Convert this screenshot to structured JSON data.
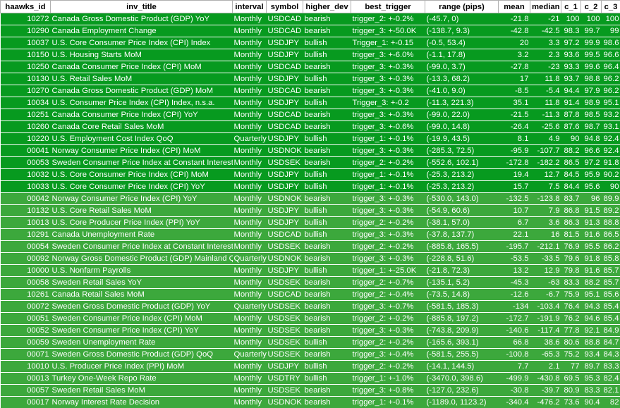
{
  "columns": [
    "haawks_id",
    "inv_title",
    "interval",
    "symbol",
    "higher_dev",
    "best_trigger",
    "range (pips)",
    "mean",
    "median",
    "c_1",
    "c_2",
    "c_3"
  ],
  "colors": {
    "dark_group": "#079a1f",
    "light_group": "#3ca83c",
    "text": "#ffffff"
  },
  "rows": [
    [
      "10272",
      "Canada Gross Domestic Product (GDP) YoY",
      "Monthly",
      "USDCAD",
      "bearish",
      "trigger_2: +-0.2%",
      "(-45.7, 0)",
      "-21.8",
      "-21",
      "100",
      "100",
      "100",
      "dark"
    ],
    [
      "10290",
      "Canada Employment Change",
      "Monthly",
      "USDCAD",
      "bearish",
      "trigger_3: +-50.0K",
      "(-138.7, 9.3)",
      "-42.8",
      "-42.5",
      "98.3",
      "99.7",
      "99",
      "dark"
    ],
    [
      "10037",
      "U.S. Core Consumer Price Index (CPI) Index",
      "Monthly",
      "USDJPY",
      "bullish",
      "Trigger_1: +-0.15",
      "(-0.5, 53.4)",
      "20",
      "3.3",
      "97.2",
      "99.9",
      "98.6",
      "dark"
    ],
    [
      "10150",
      "U.S. Housing Starts MoM",
      "Monthly",
      "USDJPY",
      "bullish",
      "trigger_3: +-6.0%",
      "(-1.1, 17.8)",
      "3.2",
      "2.3",
      "93.6",
      "99.5",
      "96.6",
      "dark"
    ],
    [
      "10250",
      "Canada Consumer Price Index (CPI) MoM",
      "Monthly",
      "USDCAD",
      "bearish",
      "trigger_3: +-0.3%",
      "(-99.0, 3.7)",
      "-27.8",
      "-23",
      "93.3",
      "99.6",
      "96.4",
      "dark"
    ],
    [
      "10130",
      "U.S. Retail Sales MoM",
      "Monthly",
      "USDJPY",
      "bullish",
      "trigger_3: +-0.3%",
      "(-13.3, 68.2)",
      "17",
      "11.8",
      "93.7",
      "98.8",
      "96.2",
      "dark"
    ],
    [
      "10270",
      "Canada Gross Domestic Product (GDP) MoM",
      "Monthly",
      "USDCAD",
      "bearish",
      "trigger_3: +-0.3%",
      "(-41.0, 9.0)",
      "-8.5",
      "-5.4",
      "94.4",
      "97.9",
      "96.2",
      "dark"
    ],
    [
      "10034",
      "U.S. Consumer Price Index (CPI) Index, n.s.a.",
      "Monthly",
      "USDJPY",
      "bullish",
      "Trigger_3: +-0.2",
      "(-11.3, 221.3)",
      "35.1",
      "11.8",
      "91.4",
      "98.9",
      "95.1",
      "dark"
    ],
    [
      "10251",
      "Canada Consumer Price Index (CPI) YoY",
      "Monthly",
      "USDCAD",
      "bearish",
      "trigger_3: +-0.3%",
      "(-99.0, 22.0)",
      "-21.5",
      "-11.3",
      "87.8",
      "98.5",
      "93.2",
      "dark"
    ],
    [
      "10260",
      "Canada Core Retail Sales MoM",
      "Monthly",
      "USDCAD",
      "bearish",
      "trigger_3: +-0.6%",
      "(-99.0, 14.8)",
      "-26.4",
      "-25.6",
      "87.6",
      "98.7",
      "93.1",
      "dark"
    ],
    [
      "10220",
      "U.S. Employment Cost Index QoQ",
      "Quarterly",
      "USDJPY",
      "bullish",
      "trigger_1: +-0.1%",
      "(-19.9, 43.5)",
      "8.1",
      "4.9",
      "90",
      "94.8",
      "92.4",
      "dark"
    ],
    [
      "00041",
      "Norway Consumer Price Index (CPI) MoM",
      "Monthly",
      "USDNOK",
      "bearish",
      "trigger_3: +-0.3%",
      "(-285.3, 72.5)",
      "-95.9",
      "-107.7",
      "88.2",
      "96.6",
      "92.4",
      "dark"
    ],
    [
      "00053",
      "Sweden Consumer Price Index at Constant Interest",
      "Monthly",
      "USDSEK",
      "bearish",
      "trigger_2: +-0.2%",
      "(-552.6, 102.1)",
      "-172.8",
      "-182.2",
      "86.5",
      "97.2",
      "91.8",
      "dark"
    ],
    [
      "10032",
      "U.S. Core Consumer Price Index (CPI) MoM",
      "Monthly",
      "USDJPY",
      "bullish",
      "trigger_1: +-0.1%",
      "(-25.3, 213.2)",
      "19.4",
      "12.7",
      "84.5",
      "95.9",
      "90.2",
      "dark"
    ],
    [
      "10033",
      "U.S. Core Consumer Price Index (CPI) YoY",
      "Monthly",
      "USDJPY",
      "bullish",
      "trigger_1: +-0.1%",
      "(-25.3, 213.2)",
      "15.7",
      "7.5",
      "84.4",
      "95.6",
      "90",
      "dark"
    ],
    [
      "00042",
      "Norway Consumer Price Index (CPI) YoY",
      "Monthly",
      "USDNOK",
      "bearish",
      "trigger_3: +-0.3%",
      "(-530.0, 143.0)",
      "-132.5",
      "-123.8",
      "83.7",
      "96",
      "89.9",
      "light"
    ],
    [
      "10132",
      "U.S. Core Retail Sales MoM",
      "Monthly",
      "USDJPY",
      "bullish",
      "trigger_3: +-0.3%",
      "(-54.9, 60.6)",
      "10.7",
      "7.9",
      "86.8",
      "91.5",
      "89.2",
      "light"
    ],
    [
      "10013",
      "U.S. Core Producer Price Index (PPI) YoY",
      "Monthly",
      "USDJPY",
      "bullish",
      "trigger_2: +-0.2%",
      "(-38.1, 57.0)",
      "6.7",
      "3.6",
      "86.3",
      "91.3",
      "88.8",
      "light"
    ],
    [
      "10291",
      "Canada Unemployment Rate",
      "Monthly",
      "USDCAD",
      "bullish",
      "trigger_3: +-0.3%",
      "(-37.8, 137.7)",
      "22.1",
      "16",
      "81.5",
      "91.6",
      "86.5",
      "light"
    ],
    [
      "00054",
      "Sweden Consumer Price Index at Constant Interest",
      "Monthly",
      "USDSEK",
      "bearish",
      "trigger_2: +-0.2%",
      "(-885.8, 165.5)",
      "-195.7",
      "-212.1",
      "76.9",
      "95.5",
      "86.2",
      "light"
    ],
    [
      "00092",
      "Norway Gross Domestic Product (GDP) Mainland Q",
      "Quarterly",
      "USDNOK",
      "bearish",
      "trigger_3: +-0.3%",
      "(-228.8, 51.6)",
      "-53.5",
      "-33.5",
      "79.6",
      "91.8",
      "85.8",
      "light"
    ],
    [
      "10000",
      "U.S. Nonfarm Payrolls",
      "Monthly",
      "USDJPY",
      "bullish",
      "trigger_1: +-25.0K",
      "(-21.8, 72.3)",
      "13.2",
      "12.9",
      "79.8",
      "91.6",
      "85.7",
      "light"
    ],
    [
      "00058",
      "Sweden Retail Sales YoY",
      "Monthly",
      "USDSEK",
      "bearish",
      "trigger_2: +-0.7%",
      "(-135.1, 5.2)",
      "-45.3",
      "-63",
      "83.3",
      "88.2",
      "85.7",
      "light"
    ],
    [
      "10261",
      "Canada Retail Sales MoM",
      "Monthly",
      "USDCAD",
      "bearish",
      "trigger_2: +-0.4%",
      "(-73.5, 14.8)",
      "-12.6",
      "-6.7",
      "75.9",
      "95.1",
      "85.6",
      "light"
    ],
    [
      "00072",
      "Sweden Gross Domestic Product (GDP) YoY",
      "Quarterly",
      "USDSEK",
      "bearish",
      "trigger_3: +-0.7%",
      "(-581.5, 185.3)",
      "-134",
      "-103.4",
      "76.4",
      "94.3",
      "85.4",
      "light"
    ],
    [
      "00051",
      "Sweden Consumer Price Index (CPI) MoM",
      "Monthly",
      "USDSEK",
      "bearish",
      "trigger_2: +-0.2%",
      "(-885.8, 197.2)",
      "-172.7",
      "-191.9",
      "76.2",
      "94.6",
      "85.4",
      "light"
    ],
    [
      "00052",
      "Sweden Consumer Price Index (CPI) YoY",
      "Monthly",
      "USDSEK",
      "bearish",
      "trigger_3: +-0.3%",
      "(-743.8, 209.9)",
      "-140.6",
      "-117.4",
      "77.8",
      "92.1",
      "84.9",
      "light"
    ],
    [
      "00059",
      "Sweden Unemployment Rate",
      "Monthly",
      "USDSEK",
      "bullish",
      "trigger_2: +-0.2%",
      "(-165.6, 393.1)",
      "66.8",
      "38.6",
      "80.6",
      "88.8",
      "84.7",
      "light"
    ],
    [
      "00071",
      "Sweden Gross Domestic Product (GDP) QoQ",
      "Quarterly",
      "USDSEK",
      "bearish",
      "trigger_3: +-0.4%",
      "(-581.5, 255.5)",
      "-100.8",
      "-65.3",
      "75.2",
      "93.4",
      "84.3",
      "light"
    ],
    [
      "10010",
      "U.S. Producer Price Index (PPI) MoM",
      "Monthly",
      "USDJPY",
      "bullish",
      "trigger_2: +-0.2%",
      "(-14.1, 144.5)",
      "7.7",
      "2.1",
      "77",
      "89.7",
      "83.3",
      "light"
    ],
    [
      "00013",
      "Turkey One-Week Repo Rate",
      "Monthly",
      "USDTRY",
      "bullish",
      "trigger_1: +-1.0%",
      "(-3470.0, 398.6)",
      "-499.9",
      "-430.8",
      "69.5",
      "95.3",
      "82.4",
      "light"
    ],
    [
      "00057",
      "Sweden Retail Sales MoM",
      "Monthly",
      "USDSEK",
      "bearish",
      "trigger_3: +-0.8%",
      "(-127.0, 232.6)",
      "-30.8",
      "-39.7",
      "80.9",
      "83.3",
      "82.1",
      "light"
    ],
    [
      "00017",
      "Norway Interest Rate Decision",
      "Monthly",
      "USDNOK",
      "bearish",
      "trigger_1: +-0.1%",
      "(-1189.0, 1123.2)",
      "-340.4",
      "-476.2",
      "73.6",
      "90.4",
      "82",
      "light"
    ]
  ]
}
